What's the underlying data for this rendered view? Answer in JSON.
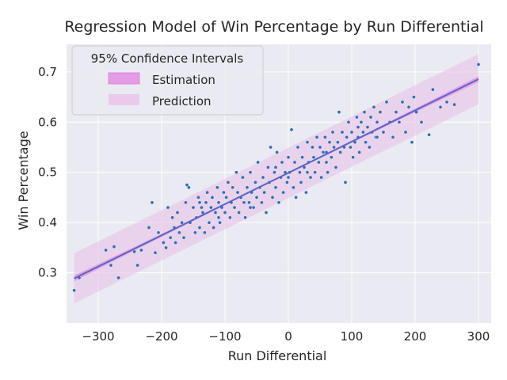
{
  "chart_data": {
    "type": "scatter",
    "title": "Regression Model of Win Percentage by Run Differential",
    "xlabel": "Run Differential",
    "ylabel": "Win Percentage",
    "xlim": [
      -350,
      320
    ],
    "ylim": [
      0.2,
      0.755
    ],
    "xticks": [
      -300,
      -200,
      -100,
      0,
      100,
      200,
      300
    ],
    "xtick_labels": [
      "−300",
      "−200",
      "−100",
      "0",
      "100",
      "200",
      "300"
    ],
    "yticks": [
      0.3,
      0.4,
      0.5,
      0.6,
      0.7
    ],
    "ytick_labels": [
      "0.3",
      "0.4",
      "0.5",
      "0.6",
      "0.7"
    ],
    "grid": true,
    "legend": {
      "title": "95% Confidence Intervals",
      "placement": "top-left",
      "entries": [
        "Estimation",
        "Prediction"
      ]
    },
    "regression": {
      "intercept": 0.499,
      "slope": 0.000622,
      "x_range": [
        -338,
        300
      ],
      "estimation_half_width": {
        "center": 0.0015,
        "edges": 0.006
      },
      "prediction_half_width": 0.05
    },
    "colors": {
      "background": "#eaeaf2",
      "grid": "#ffffff",
      "points": "#2f6db5",
      "regression_line": "#5a66c4",
      "estimation_band": "#e59ce6",
      "prediction_band": "#e8c2e8"
    },
    "points": [
      [
        -338,
        0.265
      ],
      [
        -330,
        0.29
      ],
      [
        -288,
        0.345
      ],
      [
        -280,
        0.315
      ],
      [
        -275,
        0.352
      ],
      [
        -268,
        0.29
      ],
      [
        -243,
        0.342
      ],
      [
        -238,
        0.315
      ],
      [
        -232,
        0.345
      ],
      [
        -220,
        0.39
      ],
      [
        -215,
        0.44
      ],
      [
        -210,
        0.34
      ],
      [
        -205,
        0.38
      ],
      [
        -197,
        0.36
      ],
      [
        -193,
        0.35
      ],
      [
        -190,
        0.43
      ],
      [
        -186,
        0.37
      ],
      [
        -183,
        0.41
      ],
      [
        -180,
        0.39
      ],
      [
        -178,
        0.36
      ],
      [
        -175,
        0.42
      ],
      [
        -172,
        0.38
      ],
      [
        -168,
        0.4
      ],
      [
        -165,
        0.37
      ],
      [
        -162,
        0.44
      ],
      [
        -160,
        0.475
      ],
      [
        -157,
        0.47
      ],
      [
        -155,
        0.4
      ],
      [
        -150,
        0.43
      ],
      [
        -147,
        0.38
      ],
      [
        -145,
        0.41
      ],
      [
        -142,
        0.45
      ],
      [
        -140,
        0.39
      ],
      [
        -137,
        0.43
      ],
      [
        -135,
        0.42
      ],
      [
        -132,
        0.38
      ],
      [
        -130,
        0.44
      ],
      [
        -128,
        0.46
      ],
      [
        -125,
        0.4
      ],
      [
        -122,
        0.43
      ],
      [
        -120,
        0.45
      ],
      [
        -118,
        0.39
      ],
      [
        -115,
        0.42
      ],
      [
        -112,
        0.47
      ],
      [
        -110,
        0.44
      ],
      [
        -108,
        0.4
      ],
      [
        -105,
        0.43
      ],
      [
        -102,
        0.46
      ],
      [
        -100,
        0.42
      ],
      [
        -98,
        0.45
      ],
      [
        -95,
        0.48
      ],
      [
        -92,
        0.41
      ],
      [
        -90,
        0.44
      ],
      [
        -88,
        0.47
      ],
      [
        -85,
        0.43
      ],
      [
        -82,
        0.5
      ],
      [
        -80,
        0.46
      ],
      [
        -78,
        0.42
      ],
      [
        -75,
        0.45
      ],
      [
        -72,
        0.49
      ],
      [
        -70,
        0.44
      ],
      [
        -68,
        0.41
      ],
      [
        -65,
        0.47
      ],
      [
        -62,
        0.44
      ],
      [
        -60,
        0.5
      ],
      [
        -58,
        0.46
      ],
      [
        -55,
        0.43
      ],
      [
        -52,
        0.48
      ],
      [
        -50,
        0.45
      ],
      [
        -48,
        0.52
      ],
      [
        -45,
        0.47
      ],
      [
        -42,
        0.44
      ],
      [
        -40,
        0.49
      ],
      [
        -38,
        0.46
      ],
      [
        -35,
        0.42
      ],
      [
        -32,
        0.51
      ],
      [
        -30,
        0.48
      ],
      [
        -28,
        0.55
      ],
      [
        -25,
        0.45
      ],
      [
        -22,
        0.5
      ],
      [
        -20,
        0.47
      ],
      [
        -18,
        0.54
      ],
      [
        -15,
        0.44
      ],
      [
        -12,
        0.49
      ],
      [
        -10,
        0.52
      ],
      [
        -8,
        0.46
      ],
      [
        -5,
        0.5
      ],
      [
        -2,
        0.48
      ],
      [
        0,
        0.53
      ],
      [
        2,
        0.5
      ],
      [
        5,
        0.585
      ],
      [
        8,
        0.47
      ],
      [
        10,
        0.52
      ],
      [
        12,
        0.45
      ],
      [
        15,
        0.55
      ],
      [
        18,
        0.5
      ],
      [
        20,
        0.48
      ],
      [
        22,
        0.53
      ],
      [
        25,
        0.51
      ],
      [
        28,
        0.46
      ],
      [
        30,
        0.56
      ],
      [
        32,
        0.52
      ],
      [
        35,
        0.49
      ],
      [
        38,
        0.55
      ],
      [
        40,
        0.53
      ],
      [
        42,
        0.5
      ],
      [
        45,
        0.57
      ],
      [
        48,
        0.52
      ],
      [
        50,
        0.55
      ],
      [
        52,
        0.49
      ],
      [
        55,
        0.54
      ],
      [
        58,
        0.57
      ],
      [
        60,
        0.52
      ],
      [
        62,
        0.5
      ],
      [
        65,
        0.56
      ],
      [
        68,
        0.53
      ],
      [
        70,
        0.58
      ],
      [
        72,
        0.55
      ],
      [
        75,
        0.51
      ],
      [
        78,
        0.56
      ],
      [
        80,
        0.62
      ],
      [
        82,
        0.54
      ],
      [
        85,
        0.58
      ],
      [
        88,
        0.55
      ],
      [
        90,
        0.48
      ],
      [
        92,
        0.57
      ],
      [
        95,
        0.6
      ],
      [
        98,
        0.55
      ],
      [
        100,
        0.58
      ],
      [
        102,
        0.53
      ],
      [
        105,
        0.56
      ],
      [
        108,
        0.61
      ],
      [
        110,
        0.57
      ],
      [
        112,
        0.54
      ],
      [
        115,
        0.6
      ],
      [
        118,
        0.58
      ],
      [
        120,
        0.62
      ],
      [
        122,
        0.56
      ],
      [
        125,
        0.59
      ],
      [
        128,
        0.55
      ],
      [
        130,
        0.61
      ],
      [
        132,
        0.58
      ],
      [
        135,
        0.63
      ],
      [
        138,
        0.57
      ],
      [
        140,
        0.6
      ],
      [
        145,
        0.62
      ],
      [
        150,
        0.58
      ],
      [
        155,
        0.64
      ],
      [
        160,
        0.6
      ],
      [
        165,
        0.57
      ],
      [
        170,
        0.62
      ],
      [
        175,
        0.6
      ],
      [
        180,
        0.64
      ],
      [
        185,
        0.58
      ],
      [
        190,
        0.63
      ],
      [
        195,
        0.56
      ],
      [
        198,
        0.65
      ],
      [
        202,
        0.62
      ],
      [
        210,
        0.6
      ],
      [
        222,
        0.575
      ],
      [
        228,
        0.665
      ],
      [
        240,
        0.63
      ],
      [
        250,
        0.64
      ],
      [
        262,
        0.635
      ],
      [
        300,
        0.715
      ],
      [
        -20,
        0.51
      ],
      [
        30,
        0.5
      ],
      [
        60,
        0.54
      ],
      [
        -60,
        0.43
      ],
      [
        -110,
        0.41
      ],
      [
        110,
        0.59
      ],
      [
        -140,
        0.44
      ],
      [
        140,
        0.57
      ],
      [
        0,
        0.49
      ]
    ]
  }
}
